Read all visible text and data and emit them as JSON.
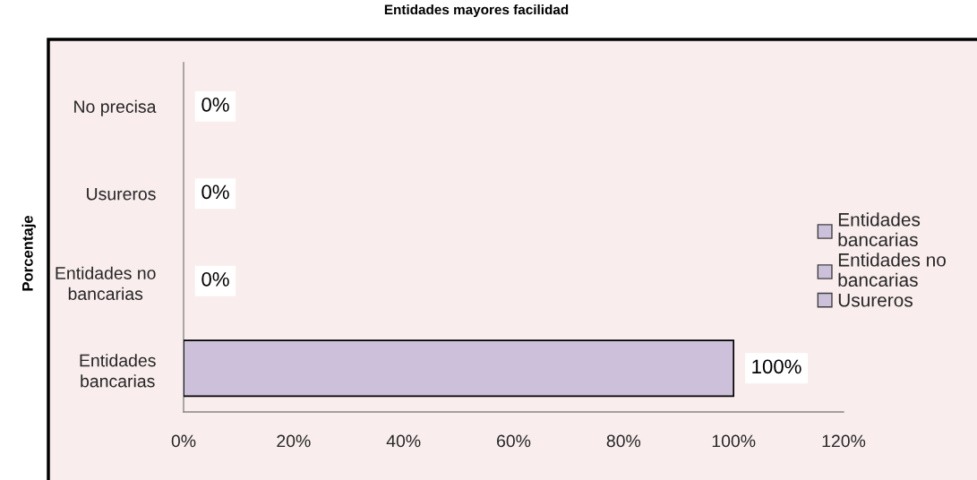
{
  "chart_data": {
    "type": "bar",
    "orientation": "horizontal",
    "stacked": true,
    "title": "Entidades mayores facilidad",
    "ylabel": "Porcentaje",
    "categories": [
      "No precisa",
      "Usureros",
      "Entidades no bancarias",
      "Entidades bancarias"
    ],
    "series": [
      {
        "name": "Entidades bancarias",
        "color": "#ccc0da",
        "values": [
          null,
          null,
          null,
          100
        ],
        "value_labels": [
          null,
          null,
          null,
          "100%"
        ]
      },
      {
        "name": "Entidades no bancarias",
        "color": "#ccc0da",
        "values": [
          null,
          null,
          0,
          null
        ],
        "value_labels": [
          null,
          null,
          "0%",
          null
        ]
      },
      {
        "name": "Usureros",
        "color": "#ccc0da",
        "values": [
          null,
          0,
          null,
          null
        ],
        "value_labels": [
          null,
          "0%",
          null,
          null
        ]
      },
      {
        "color": "#ccc0da",
        "values": [
          0,
          null,
          null,
          null
        ],
        "value_labels": [
          "0%",
          null,
          null,
          null
        ]
      }
    ],
    "xlim": [
      0,
      120
    ],
    "xticks": [
      {
        "value": 0,
        "label": "0%"
      },
      {
        "value": 20,
        "label": "20%"
      },
      {
        "value": 40,
        "label": "40%"
      },
      {
        "value": 60,
        "label": "60%"
      },
      {
        "value": 80,
        "label": "80%"
      },
      {
        "value": 100,
        "label": "100%"
      },
      {
        "value": 120,
        "label": "120%"
      }
    ],
    "legend": "right"
  }
}
